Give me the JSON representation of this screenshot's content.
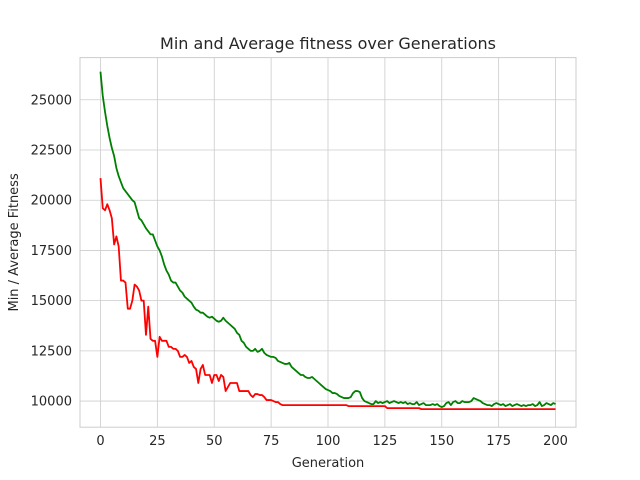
{
  "chart_data": {
    "type": "line",
    "title": "Min and Average fitness over Generations",
    "xlabel": "Generation",
    "ylabel": "Min / Average Fitness",
    "xlim": [
      -9,
      209
    ],
    "ylim": [
      8700,
      27100
    ],
    "x_ticks": [
      0,
      25,
      50,
      75,
      100,
      125,
      150,
      175,
      200
    ],
    "y_ticks": [
      10000,
      12500,
      15000,
      17500,
      20000,
      22500,
      25000
    ],
    "grid": true,
    "legend": "none",
    "series": [
      {
        "color": "#008000",
        "points": [
          [
            0,
            26400
          ],
          [
            1,
            25200
          ],
          [
            2,
            24400
          ],
          [
            3,
            23700
          ],
          [
            4,
            23100
          ],
          [
            5,
            22600
          ],
          [
            6,
            22200
          ],
          [
            7,
            21600
          ],
          [
            8,
            21200
          ],
          [
            9,
            20900
          ],
          [
            10,
            20600
          ],
          [
            12,
            20300
          ],
          [
            14,
            20000
          ],
          [
            15,
            19900
          ],
          [
            16,
            19500
          ],
          [
            17,
            19100
          ],
          [
            18,
            19000
          ],
          [
            19,
            18800
          ],
          [
            20,
            18600
          ],
          [
            21,
            18450
          ],
          [
            22,
            18300
          ],
          [
            23,
            18300
          ],
          [
            24,
            18000
          ],
          [
            25,
            17700
          ],
          [
            26,
            17500
          ],
          [
            27,
            17200
          ],
          [
            28,
            16800
          ],
          [
            29,
            16500
          ],
          [
            30,
            16300
          ],
          [
            31,
            16000
          ],
          [
            32,
            15900
          ],
          [
            33,
            15900
          ],
          [
            34,
            15700
          ],
          [
            35,
            15500
          ],
          [
            36,
            15400
          ],
          [
            37,
            15200
          ],
          [
            38,
            15100
          ],
          [
            39,
            15000
          ],
          [
            40,
            14900
          ],
          [
            41,
            14700
          ],
          [
            42,
            14550
          ],
          [
            43,
            14500
          ],
          [
            44,
            14400
          ],
          [
            45,
            14400
          ],
          [
            46,
            14300
          ],
          [
            47,
            14200
          ],
          [
            48,
            14150
          ],
          [
            49,
            14200
          ],
          [
            50,
            14100
          ],
          [
            51,
            14000
          ],
          [
            52,
            13950
          ],
          [
            53,
            14000
          ],
          [
            54,
            14150
          ],
          [
            55,
            14000
          ],
          [
            56,
            13900
          ],
          [
            57,
            13800
          ],
          [
            58,
            13700
          ],
          [
            59,
            13600
          ],
          [
            60,
            13400
          ],
          [
            61,
            13300
          ],
          [
            62,
            13000
          ],
          [
            63,
            12900
          ],
          [
            64,
            12700
          ],
          [
            65,
            12600
          ],
          [
            66,
            12500
          ],
          [
            67,
            12500
          ],
          [
            68,
            12600
          ],
          [
            69,
            12450
          ],
          [
            70,
            12500
          ],
          [
            71,
            12600
          ],
          [
            72,
            12400
          ],
          [
            73,
            12300
          ],
          [
            74,
            12250
          ],
          [
            75,
            12200
          ],
          [
            76,
            12200
          ],
          [
            77,
            12150
          ],
          [
            78,
            12000
          ],
          [
            79,
            11950
          ],
          [
            80,
            11900
          ],
          [
            81,
            11850
          ],
          [
            82,
            11850
          ],
          [
            83,
            11900
          ],
          [
            84,
            11700
          ],
          [
            85,
            11600
          ],
          [
            86,
            11500
          ],
          [
            87,
            11400
          ],
          [
            88,
            11300
          ],
          [
            89,
            11300
          ],
          [
            90,
            11200
          ],
          [
            91,
            11150
          ],
          [
            92,
            11150
          ],
          [
            93,
            11200
          ],
          [
            94,
            11100
          ],
          [
            95,
            11000
          ],
          [
            96,
            10900
          ],
          [
            97,
            10800
          ],
          [
            98,
            10700
          ],
          [
            99,
            10600
          ],
          [
            100,
            10550
          ],
          [
            101,
            10500
          ],
          [
            102,
            10400
          ],
          [
            103,
            10400
          ],
          [
            104,
            10350
          ],
          [
            105,
            10250
          ],
          [
            106,
            10200
          ],
          [
            107,
            10150
          ],
          [
            108,
            10150
          ],
          [
            109,
            10150
          ],
          [
            110,
            10200
          ],
          [
            111,
            10400
          ],
          [
            112,
            10500
          ],
          [
            113,
            10500
          ],
          [
            114,
            10450
          ],
          [
            115,
            10150
          ],
          [
            116,
            10000
          ],
          [
            117,
            9950
          ],
          [
            118,
            9900
          ],
          [
            119,
            9850
          ],
          [
            120,
            9850
          ],
          [
            121,
            10000
          ],
          [
            122,
            9900
          ],
          [
            123,
            9950
          ],
          [
            124,
            9900
          ],
          [
            125,
            9950
          ],
          [
            126,
            10000
          ],
          [
            127,
            9900
          ],
          [
            128,
            9950
          ],
          [
            129,
            10000
          ],
          [
            130,
            9950
          ],
          [
            131,
            9900
          ],
          [
            132,
            9950
          ],
          [
            133,
            9900
          ],
          [
            134,
            9950
          ],
          [
            135,
            9850
          ],
          [
            136,
            9900
          ],
          [
            137,
            9850
          ],
          [
            138,
            9850
          ],
          [
            139,
            9950
          ],
          [
            140,
            9800
          ],
          [
            141,
            9850
          ],
          [
            142,
            9900
          ],
          [
            143,
            9800
          ],
          [
            144,
            9800
          ],
          [
            145,
            9800
          ],
          [
            146,
            9850
          ],
          [
            147,
            9800
          ],
          [
            148,
            9850
          ],
          [
            149,
            9750
          ],
          [
            150,
            9700
          ],
          [
            151,
            9750
          ],
          [
            152,
            9900
          ],
          [
            153,
            9950
          ],
          [
            154,
            9800
          ],
          [
            155,
            9950
          ],
          [
            156,
            10000
          ],
          [
            157,
            9900
          ],
          [
            158,
            9900
          ],
          [
            159,
            10000
          ],
          [
            160,
            9950
          ],
          [
            161,
            9950
          ],
          [
            162,
            9950
          ],
          [
            163,
            10000
          ],
          [
            164,
            10150
          ],
          [
            165,
            10100
          ],
          [
            166,
            10050
          ],
          [
            167,
            10000
          ],
          [
            168,
            9900
          ],
          [
            169,
            9850
          ],
          [
            170,
            9800
          ],
          [
            171,
            9800
          ],
          [
            172,
            9750
          ],
          [
            173,
            9850
          ],
          [
            174,
            9900
          ],
          [
            175,
            9850
          ],
          [
            176,
            9800
          ],
          [
            177,
            9850
          ],
          [
            178,
            9750
          ],
          [
            179,
            9800
          ],
          [
            180,
            9850
          ],
          [
            181,
            9750
          ],
          [
            182,
            9800
          ],
          [
            183,
            9850
          ],
          [
            184,
            9800
          ],
          [
            185,
            9750
          ],
          [
            186,
            9800
          ],
          [
            187,
            9750
          ],
          [
            188,
            9800
          ],
          [
            189,
            9800
          ],
          [
            190,
            9850
          ],
          [
            191,
            9750
          ],
          [
            192,
            9800
          ],
          [
            193,
            9950
          ],
          [
            194,
            9750
          ],
          [
            195,
            9800
          ],
          [
            196,
            9900
          ],
          [
            197,
            9850
          ],
          [
            198,
            9800
          ],
          [
            199,
            9900
          ],
          [
            200,
            9850
          ]
        ]
      },
      {
        "color": "#ff0000",
        "points": [
          [
            0,
            21100
          ],
          [
            1,
            19600
          ],
          [
            2,
            19500
          ],
          [
            3,
            19800
          ],
          [
            4,
            19500
          ],
          [
            5,
            19100
          ],
          [
            6,
            17800
          ],
          [
            7,
            18200
          ],
          [
            8,
            17700
          ],
          [
            9,
            16000
          ],
          [
            10,
            16000
          ],
          [
            11,
            15900
          ],
          [
            12,
            14600
          ],
          [
            13,
            14600
          ],
          [
            14,
            15000
          ],
          [
            15,
            15800
          ],
          [
            16,
            15700
          ],
          [
            17,
            15500
          ],
          [
            18,
            15000
          ],
          [
            19,
            15000
          ],
          [
            20,
            13300
          ],
          [
            21,
            14700
          ],
          [
            22,
            13100
          ],
          [
            23,
            13000
          ],
          [
            24,
            13000
          ],
          [
            25,
            12200
          ],
          [
            26,
            13200
          ],
          [
            27,
            13000
          ],
          [
            28,
            13000
          ],
          [
            29,
            13000
          ],
          [
            30,
            12700
          ],
          [
            31,
            12700
          ],
          [
            32,
            12600
          ],
          [
            33,
            12600
          ],
          [
            34,
            12500
          ],
          [
            35,
            12200
          ],
          [
            36,
            12200
          ],
          [
            37,
            12300
          ],
          [
            38,
            12200
          ],
          [
            39,
            11900
          ],
          [
            40,
            12000
          ],
          [
            41,
            11700
          ],
          [
            42,
            11600
          ],
          [
            43,
            10900
          ],
          [
            44,
            11600
          ],
          [
            45,
            11800
          ],
          [
            46,
            11300
          ],
          [
            47,
            11300
          ],
          [
            48,
            11300
          ],
          [
            49,
            10900
          ],
          [
            50,
            11300
          ],
          [
            51,
            11300
          ],
          [
            52,
            11000
          ],
          [
            53,
            11300
          ],
          [
            54,
            11200
          ],
          [
            55,
            10500
          ],
          [
            56,
            10700
          ],
          [
            57,
            10900
          ],
          [
            58,
            10900
          ],
          [
            59,
            10900
          ],
          [
            60,
            10900
          ],
          [
            61,
            10500
          ],
          [
            62,
            10500
          ],
          [
            63,
            10500
          ],
          [
            64,
            10500
          ],
          [
            65,
            10500
          ],
          [
            66,
            10300
          ],
          [
            67,
            10200
          ],
          [
            68,
            10350
          ],
          [
            69,
            10350
          ],
          [
            70,
            10300
          ],
          [
            71,
            10300
          ],
          [
            72,
            10200
          ],
          [
            73,
            10050
          ],
          [
            74,
            10050
          ],
          [
            75,
            10050
          ],
          [
            76,
            10000
          ],
          [
            77,
            9950
          ],
          [
            78,
            9950
          ],
          [
            79,
            9850
          ],
          [
            80,
            9800
          ],
          [
            90,
            9800
          ],
          [
            100,
            9800
          ],
          [
            108,
            9800
          ],
          [
            109,
            9750
          ],
          [
            120,
            9750
          ],
          [
            125,
            9750
          ],
          [
            126,
            9650
          ],
          [
            140,
            9650
          ],
          [
            141,
            9600
          ],
          [
            160,
            9600
          ],
          [
            180,
            9600
          ],
          [
            200,
            9600
          ]
        ]
      }
    ]
  }
}
